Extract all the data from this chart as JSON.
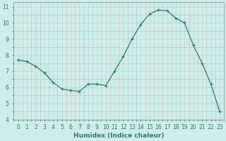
{
  "x": [
    0,
    1,
    2,
    3,
    4,
    5,
    6,
    7,
    8,
    9,
    10,
    11,
    12,
    13,
    14,
    15,
    16,
    17,
    18,
    19,
    20,
    21,
    22,
    23
  ],
  "y": [
    7.7,
    7.6,
    7.3,
    6.9,
    6.3,
    5.9,
    5.8,
    5.75,
    6.2,
    6.2,
    6.1,
    7.0,
    7.9,
    9.0,
    9.9,
    10.55,
    10.8,
    10.75,
    10.3,
    10.0,
    8.6,
    7.5,
    6.2,
    4.5
  ],
  "xlabel": "Humidex (Indice chaleur)",
  "xlim_min": -0.5,
  "xlim_max": 23.5,
  "ylim_min": 4,
  "ylim_max": 11.3,
  "yticks": [
    4,
    5,
    6,
    7,
    8,
    9,
    10,
    11
  ],
  "xticks": [
    0,
    1,
    2,
    3,
    4,
    5,
    6,
    7,
    8,
    9,
    10,
    11,
    12,
    13,
    14,
    15,
    16,
    17,
    18,
    19,
    20,
    21,
    22,
    23
  ],
  "line_color": "#2e7d71",
  "bg_color": "#ceecea",
  "grid_color_major": "#b5d9d5",
  "grid_color_minor": "#c8e8e4",
  "xlabel_fontsize": 6.5,
  "tick_fontsize": 5.5
}
